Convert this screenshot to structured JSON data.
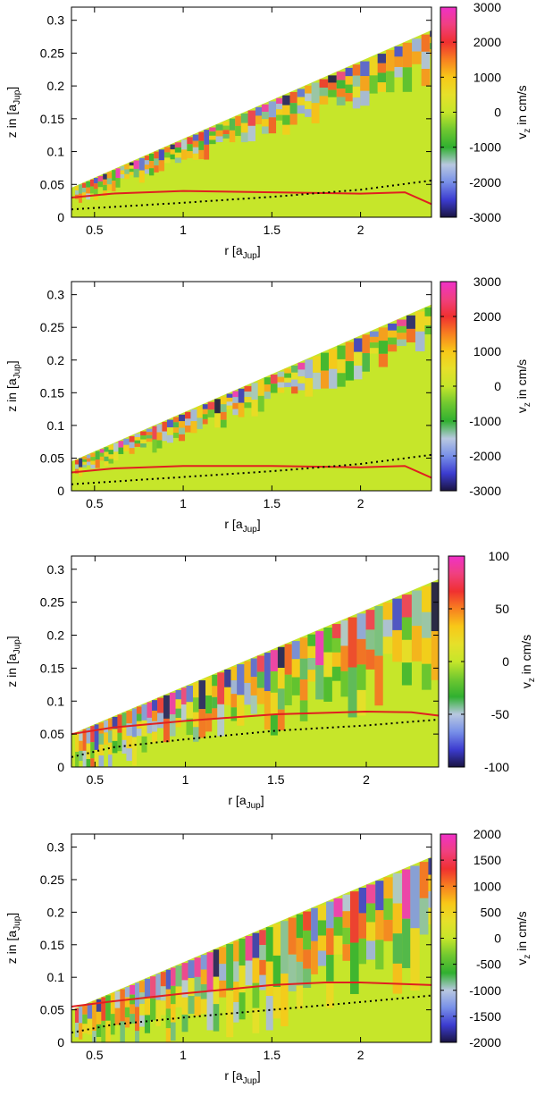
{
  "chart_data": [
    {
      "type": "heatmap",
      "panel": "1",
      "xlabel": "r [a",
      "xlabel_sub": "Jup",
      "xlabel_end": "]",
      "ylabel": "z in [a",
      "ylabel_sub": "Jup",
      "ylabel_end": "]",
      "cblabel": "v",
      "cblabel_sub": "z",
      "cblabel_end": " in cm/s",
      "xlim": [
        0.37,
        2.4
      ],
      "ylim": [
        0,
        0.32
      ],
      "xticks": [
        "0.5",
        "1",
        "1.5",
        "2"
      ],
      "xtick_values": [
        0.5,
        1,
        1.5,
        2
      ],
      "yticks": [
        "0",
        "0.05",
        "0.1",
        "0.15",
        "0.2",
        "0.25",
        "0.3"
      ],
      "ytick_values": [
        0,
        0.05,
        0.1,
        0.15,
        0.2,
        0.25,
        0.3
      ],
      "clim": [
        -3000,
        3000
      ],
      "cbticks": [
        "-3000",
        "-2000",
        "-1000",
        "0",
        "1000",
        "2000",
        "3000"
      ],
      "cbtick_values": [
        -3000,
        -2000,
        -1000,
        0,
        1000,
        2000,
        3000
      ],
      "surface_top": [
        [
          0.37,
          0.045
        ],
        [
          2.4,
          0.285
        ]
      ],
      "red_curve": [
        [
          0.37,
          0.03
        ],
        [
          0.6,
          0.036
        ],
        [
          1.0,
          0.04
        ],
        [
          1.5,
          0.038
        ],
        [
          2.0,
          0.036
        ],
        [
          2.25,
          0.038
        ],
        [
          2.4,
          0.02
        ]
      ],
      "dotted_curve": [
        [
          0.37,
          0.012
        ],
        [
          1.0,
          0.022
        ],
        [
          1.5,
          0.031
        ],
        [
          2.0,
          0.042
        ],
        [
          2.4,
          0.056
        ]
      ],
      "wave_zone_height": 0.08,
      "seed": 11
    },
    {
      "type": "heatmap",
      "panel": "2",
      "xlabel": "r [a",
      "xlabel_sub": "Jup",
      "xlabel_end": "]",
      "ylabel": "z in [a",
      "ylabel_sub": "Jup",
      "ylabel_end": "]",
      "cblabel": "v",
      "cblabel_sub": "z",
      "cblabel_end": " in cm/s",
      "xlim": [
        0.37,
        2.4
      ],
      "ylim": [
        0,
        0.32
      ],
      "xticks": [
        "0.5",
        "1",
        "1.5",
        "2"
      ],
      "xtick_values": [
        0.5,
        1,
        1.5,
        2
      ],
      "yticks": [
        "0",
        "0.05",
        "0.1",
        "0.15",
        "0.2",
        "0.25",
        "0.3"
      ],
      "ytick_values": [
        0,
        0.05,
        0.1,
        0.15,
        0.2,
        0.25,
        0.3
      ],
      "clim": [
        -3000,
        3000
      ],
      "cbticks": [
        "-3000",
        "-2000",
        "-1000",
        "0",
        "1000",
        "2000",
        "3000"
      ],
      "cbtick_values": [
        -3000,
        -2000,
        -1000,
        0,
        1000,
        2000,
        3000
      ],
      "surface_top": [
        [
          0.37,
          0.045
        ],
        [
          2.4,
          0.285
        ]
      ],
      "red_curve": [
        [
          0.37,
          0.028
        ],
        [
          0.6,
          0.034
        ],
        [
          1.0,
          0.038
        ],
        [
          1.5,
          0.038
        ],
        [
          2.0,
          0.036
        ],
        [
          2.25,
          0.038
        ],
        [
          2.4,
          0.02
        ]
      ],
      "dotted_curve": [
        [
          0.37,
          0.01
        ],
        [
          1.0,
          0.021
        ],
        [
          1.5,
          0.03
        ],
        [
          2.0,
          0.041
        ],
        [
          2.4,
          0.055
        ]
      ],
      "wave_zone_height": 0.08,
      "seed": 23
    },
    {
      "type": "heatmap",
      "panel": "3",
      "xlabel": "r [a",
      "xlabel_sub": "Jup",
      "xlabel_end": "]",
      "ylabel": "z in [a",
      "ylabel_sub": "Jup",
      "ylabel_end": "]",
      "cblabel": "v",
      "cblabel_sub": "z",
      "cblabel_end": " in cm/s",
      "xlim": [
        0.37,
        2.4
      ],
      "ylim": [
        0,
        0.32
      ],
      "xticks": [
        "0.5",
        "1",
        "1.5",
        "2"
      ],
      "xtick_values": [
        0.5,
        1,
        1.5,
        2
      ],
      "yticks": [
        "0",
        "0.05",
        "0.1",
        "0.15",
        "0.2",
        "0.25",
        "0.3"
      ],
      "ytick_values": [
        0,
        0.05,
        0.1,
        0.15,
        0.2,
        0.25,
        0.3
      ],
      "clim": [
        -100,
        100
      ],
      "cbticks": [
        "-100",
        "-50",
        "0",
        "50",
        "100"
      ],
      "cbtick_values": [
        -100,
        -50,
        0,
        50,
        100
      ],
      "surface_top": [
        [
          0.37,
          0.05
        ],
        [
          2.4,
          0.285
        ]
      ],
      "red_curve": [
        [
          0.37,
          0.05
        ],
        [
          0.6,
          0.06
        ],
        [
          1.0,
          0.07
        ],
        [
          1.5,
          0.08
        ],
        [
          2.0,
          0.084
        ],
        [
          2.25,
          0.083
        ],
        [
          2.4,
          0.078
        ]
      ],
      "dotted_curve": [
        [
          0.37,
          0.015
        ],
        [
          0.6,
          0.03
        ],
        [
          1.0,
          0.042
        ],
        [
          1.5,
          0.055
        ],
        [
          2.0,
          0.063
        ],
        [
          2.4,
          0.072
        ]
      ],
      "wave_zone_height": 0.18,
      "seed": 37
    },
    {
      "type": "heatmap",
      "panel": "4",
      "xlabel": "r [a",
      "xlabel_sub": "Jup",
      "xlabel_end": "]",
      "ylabel": "z in [a",
      "ylabel_sub": "Jup",
      "ylabel_end": "]",
      "cblabel": "v",
      "cblabel_sub": "z",
      "cblabel_end": " in cm/s",
      "xlim": [
        0.37,
        2.4
      ],
      "ylim": [
        0,
        0.32
      ],
      "xticks": [
        "0.5",
        "1",
        "1.5",
        "2"
      ],
      "xtick_values": [
        0.5,
        1,
        1.5,
        2
      ],
      "yticks": [
        "0",
        "0.05",
        "0.1",
        "0.15",
        "0.2",
        "0.25",
        "0.3"
      ],
      "ytick_values": [
        0,
        0.05,
        0.1,
        0.15,
        0.2,
        0.25,
        0.3
      ],
      "clim": [
        -2000,
        2000
      ],
      "cbticks": [
        "-2000",
        "-1500",
        "-1000",
        "-500",
        "0",
        "500",
        "1000",
        "1500",
        "2000"
      ],
      "cbtick_values": [
        -2000,
        -1500,
        -1000,
        -500,
        0,
        500,
        1000,
        1500,
        2000
      ],
      "surface_top": [
        [
          0.37,
          0.05
        ],
        [
          2.4,
          0.285
        ]
      ],
      "red_curve": [
        [
          0.37,
          0.055
        ],
        [
          0.6,
          0.063
        ],
        [
          1.0,
          0.075
        ],
        [
          1.5,
          0.088
        ],
        [
          1.8,
          0.092
        ],
        [
          2.0,
          0.092
        ],
        [
          2.4,
          0.088
        ]
      ],
      "dotted_curve": [
        [
          0.37,
          0.015
        ],
        [
          0.6,
          0.027
        ],
        [
          1.0,
          0.038
        ],
        [
          1.5,
          0.05
        ],
        [
          2.0,
          0.062
        ],
        [
          2.4,
          0.072
        ]
      ],
      "wave_zone_height": 0.22,
      "seed": 53
    }
  ],
  "colors": {
    "colormap": [
      "#1a1442",
      "#3c3cd0",
      "#7890e8",
      "#b8c8e0",
      "#30b030",
      "#70c830",
      "#c6e62a",
      "#e6e02a",
      "#f8c818",
      "#f88020",
      "#f03030",
      "#f04080",
      "#f030c8"
    ],
    "red_curve": "#e02020",
    "dotted_curve": "#000000",
    "background": "#c6e62a"
  }
}
